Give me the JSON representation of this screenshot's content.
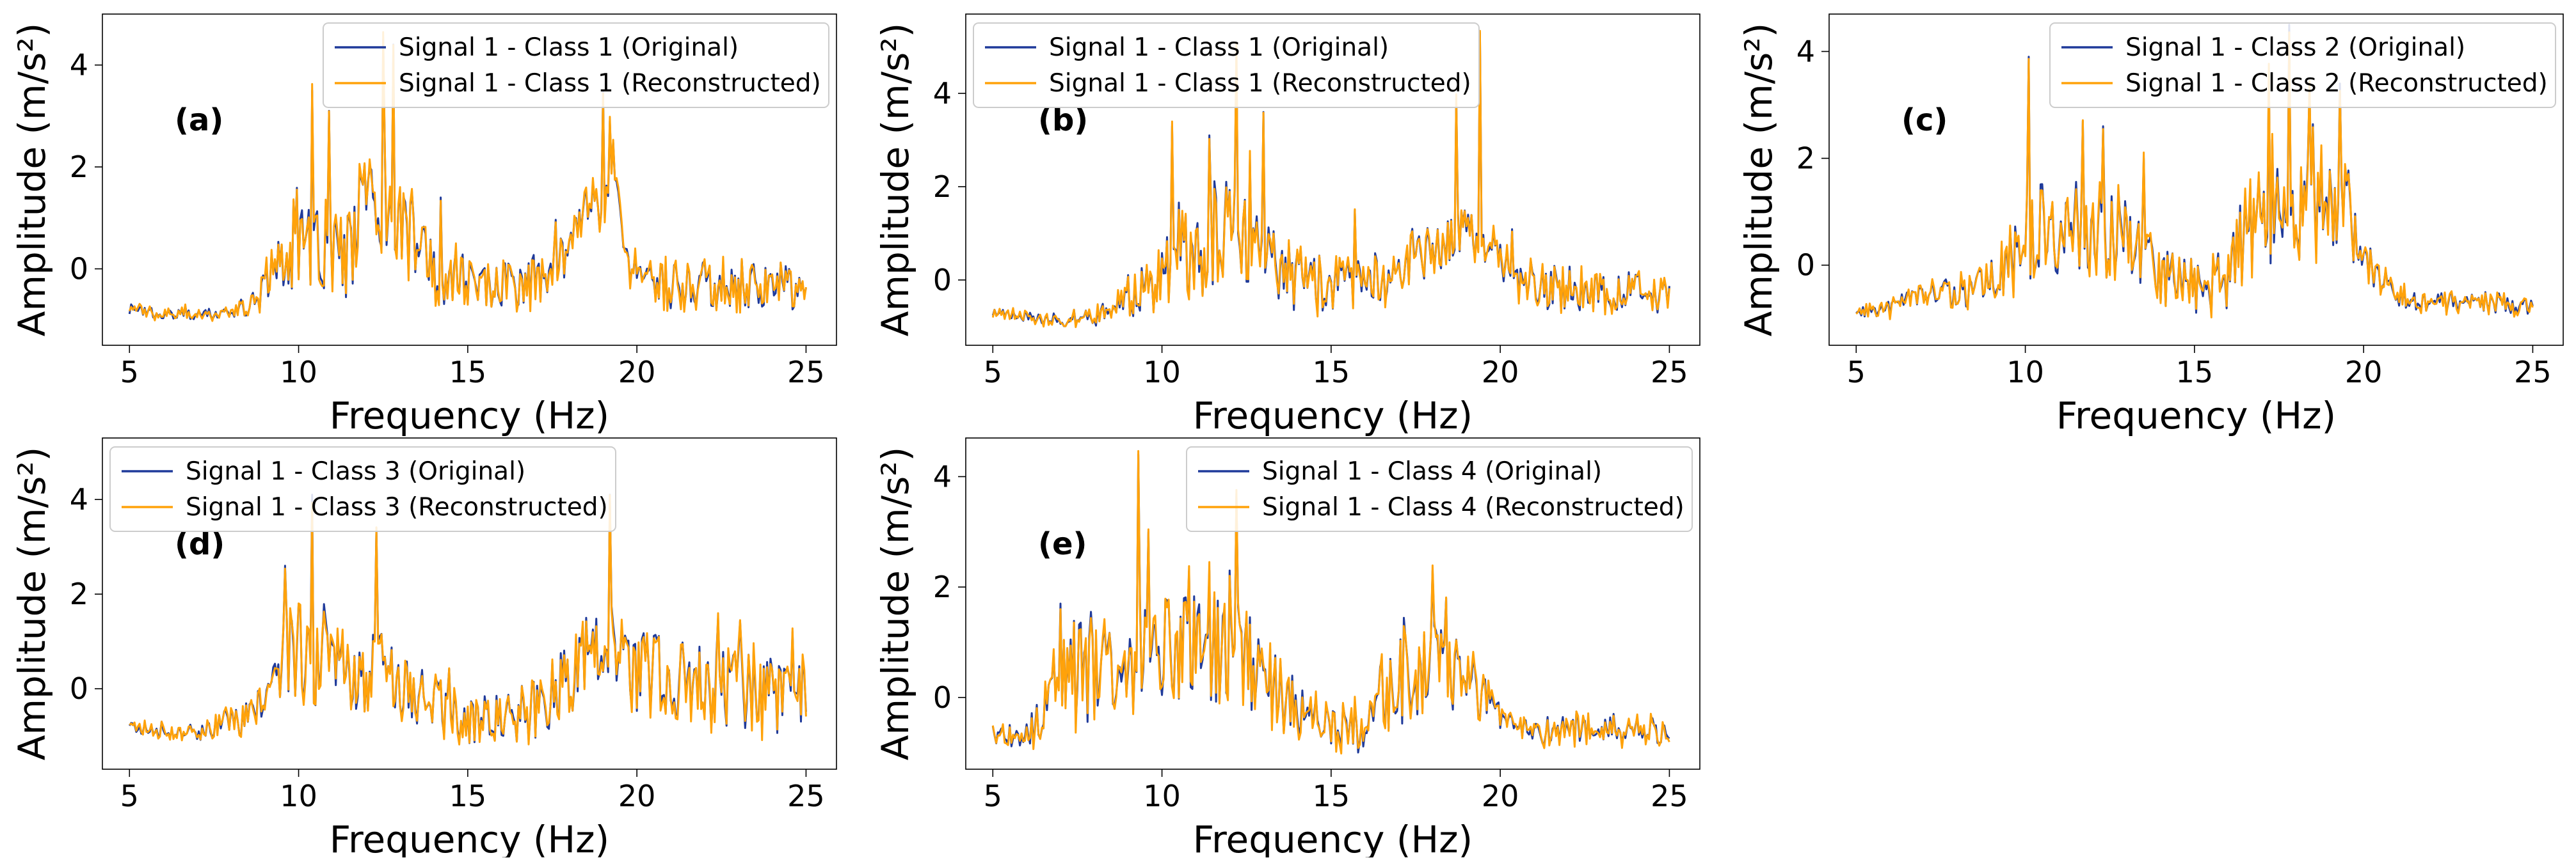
{
  "figure": {
    "colors": {
      "original": "#1f3a9a",
      "reconstructed": "#ffa20a",
      "axis": "#000000",
      "legend_border": "#cccccc"
    }
  },
  "chart_data": [
    {
      "type": "line",
      "panel_label": "(a)",
      "xlabel": "Frequency (Hz)",
      "ylabel": "Amplitude (m/s²)",
      "xlim": [
        4.2,
        25.9
      ],
      "ylim": [
        -1.5,
        5.0
      ],
      "xticks": [
        5,
        10,
        15,
        20,
        25
      ],
      "yticks": [
        0,
        2,
        4
      ],
      "grid": false,
      "legend_position": "upper right",
      "x_range": [
        5,
        25
      ],
      "series": [
        {
          "name": "Signal 1 - Class 1 (Original)",
          "role": "original"
        },
        {
          "name": "Signal 1 - Class 1 (Reconstructed)",
          "role": "reconstructed"
        }
      ],
      "profile": {
        "x": [
          5,
          6,
          7,
          8,
          8.8,
          9.4,
          9.8,
          10.0,
          10.5,
          11.0,
          11.5,
          12.0,
          12.4,
          12.7,
          13.0,
          13.5,
          14,
          15,
          16,
          17,
          18,
          18.5,
          19.0,
          19.3,
          19.6,
          20,
          21,
          22,
          23,
          24,
          25
        ],
        "y": [
          -0.8,
          -0.9,
          -0.9,
          -0.85,
          -0.6,
          0.2,
          0.5,
          0.6,
          0.3,
          0.4,
          0.3,
          1.5,
          1.4,
          1.2,
          1.2,
          0.3,
          -0.1,
          -0.2,
          -0.3,
          -0.2,
          0.3,
          1.3,
          1.0,
          2.4,
          0.2,
          -0.2,
          -0.4,
          -0.3,
          -0.3,
          -0.3,
          -0.5
        ],
        "jitter": [
          0.1,
          0.1,
          0.1,
          0.12,
          0.3,
          0.7,
          0.9,
          1.0,
          1.0,
          0.9,
          0.9,
          1.0,
          1.0,
          1.0,
          0.9,
          0.8,
          0.6,
          0.5,
          0.5,
          0.5,
          0.4,
          0.3,
          0.3,
          0.3,
          0.4,
          0.5,
          0.5,
          0.5,
          0.5,
          0.5,
          0.4
        ],
        "spikes": [
          [
            10.4,
            3.5
          ],
          [
            10.9,
            3.1
          ],
          [
            12.1,
            2.0
          ],
          [
            12.5,
            4.5
          ],
          [
            12.8,
            4.4
          ],
          [
            14.2,
            1.4
          ],
          [
            19.0,
            3.5
          ],
          [
            19.2,
            2.9
          ]
        ]
      }
    },
    {
      "type": "line",
      "panel_label": "(b)",
      "xlabel": "Frequency (Hz)",
      "ylabel": "Amplitude (m/s²)",
      "xlim": [
        4.2,
        25.9
      ],
      "ylim": [
        -1.4,
        5.7
      ],
      "xticks": [
        5,
        10,
        15,
        20,
        25
      ],
      "yticks": [
        0,
        2,
        4
      ],
      "grid": false,
      "legend_position": "upper left",
      "x_range": [
        5,
        25
      ],
      "series": [
        {
          "name": "Signal 1 - Class 1 (Original)",
          "role": "original"
        },
        {
          "name": "Signal 1 - Class 1 (Reconstructed)",
          "role": "reconstructed"
        }
      ],
      "profile": {
        "x": [
          5,
          6,
          7,
          8,
          9,
          9.5,
          10,
          10.5,
          11,
          11.5,
          12,
          12.5,
          13,
          13.5,
          14,
          15,
          16,
          17,
          18,
          18.5,
          19,
          19.5,
          20,
          21,
          22,
          23,
          24,
          25
        ],
        "y": [
          -0.7,
          -0.8,
          -0.9,
          -0.8,
          -0.5,
          -0.2,
          0.3,
          0.8,
          0.6,
          0.7,
          1.3,
          0.8,
          0.9,
          0.3,
          0.0,
          -0.1,
          0.0,
          0.2,
          0.6,
          0.9,
          1.2,
          0.7,
          0.3,
          -0.1,
          -0.2,
          -0.2,
          -0.3,
          -0.3
        ],
        "jitter": [
          0.1,
          0.1,
          0.1,
          0.2,
          0.4,
          0.6,
          0.9,
          1.0,
          1.0,
          1.0,
          1.0,
          1.0,
          0.9,
          0.8,
          0.7,
          0.6,
          0.6,
          0.6,
          0.6,
          0.5,
          0.5,
          0.5,
          0.5,
          0.5,
          0.5,
          0.5,
          0.5,
          0.4
        ],
        "spikes": [
          [
            10.3,
            3.3
          ],
          [
            11.4,
            3.1
          ],
          [
            12.2,
            4.9
          ],
          [
            12.6,
            2.6
          ],
          [
            13.0,
            3.6
          ],
          [
            15.7,
            1.5
          ],
          [
            18.7,
            3.9
          ],
          [
            19.4,
            5.3
          ]
        ]
      }
    },
    {
      "type": "line",
      "panel_label": "(c)",
      "xlabel": "Frequency (Hz)",
      "ylabel": "Amplitude (m/s²)",
      "xlim": [
        4.2,
        25.9
      ],
      "ylim": [
        -1.5,
        4.7
      ],
      "xticks": [
        5,
        10,
        15,
        20,
        25
      ],
      "yticks": [
        0,
        2,
        4
      ],
      "grid": false,
      "legend_position": "upper right",
      "x_range": [
        5,
        25
      ],
      "series": [
        {
          "name": "Signal 1 - Class 2 (Original)",
          "role": "original"
        },
        {
          "name": "Signal 1 - Class 2 (Reconstructed)",
          "role": "reconstructed"
        }
      ],
      "profile": {
        "x": [
          5,
          6,
          7,
          8,
          9,
          9.5,
          10,
          10.5,
          11,
          11.5,
          12,
          12.5,
          13,
          13.5,
          14,
          15,
          16,
          16.5,
          17,
          17.5,
          18,
          18.5,
          19,
          19.5,
          20,
          21,
          22,
          23,
          24,
          25
        ],
        "y": [
          -0.9,
          -0.8,
          -0.5,
          -0.5,
          -0.3,
          0.0,
          0.5,
          0.7,
          0.6,
          0.8,
          0.8,
          0.6,
          0.5,
          0.3,
          -0.2,
          -0.4,
          -0.3,
          0.6,
          1.0,
          0.9,
          1.0,
          1.1,
          1.2,
          1.1,
          0.1,
          -0.6,
          -0.7,
          -0.7,
          -0.7,
          -0.8
        ],
        "jitter": [
          0.1,
          0.15,
          0.2,
          0.3,
          0.4,
          0.6,
          0.9,
          0.9,
          0.8,
          0.9,
          0.9,
          0.9,
          0.8,
          0.7,
          0.6,
          0.5,
          0.6,
          0.9,
          1.0,
          1.0,
          1.0,
          1.0,
          1.0,
          0.9,
          0.4,
          0.2,
          0.2,
          0.2,
          0.2,
          0.15
        ],
        "spikes": [
          [
            10.1,
            3.9
          ],
          [
            11.7,
            2.7
          ],
          [
            12.3,
            2.6
          ],
          [
            13.5,
            2.0
          ],
          [
            17.2,
            3.6
          ],
          [
            17.8,
            4.5
          ],
          [
            18.4,
            3.3
          ],
          [
            19.3,
            3.4
          ]
        ]
      }
    },
    {
      "type": "line",
      "panel_label": "(d)",
      "xlabel": "Frequency (Hz)",
      "ylabel": "Amplitude (m/s²)",
      "xlim": [
        4.2,
        25.9
      ],
      "ylim": [
        -1.7,
        5.3
      ],
      "xticks": [
        5,
        10,
        15,
        20,
        25
      ],
      "yticks": [
        0,
        2,
        4
      ],
      "grid": false,
      "legend_position": "upper left",
      "x_range": [
        5,
        25
      ],
      "series": [
        {
          "name": "Signal 1 - Class 3 (Original)",
          "role": "original"
        },
        {
          "name": "Signal 1 - Class 3 (Reconstructed)",
          "role": "reconstructed"
        }
      ],
      "profile": {
        "x": [
          5,
          6,
          7,
          8,
          9,
          9.5,
          10,
          10.5,
          11,
          11.5,
          12,
          12.5,
          13,
          14,
          15,
          16,
          17,
          18,
          18.5,
          19,
          19.5,
          20,
          21,
          22,
          23,
          24,
          25
        ],
        "y": [
          -0.8,
          -0.9,
          -0.9,
          -0.7,
          -0.4,
          0.5,
          0.8,
          0.6,
          0.5,
          0.3,
          0.2,
          0.4,
          0.0,
          -0.3,
          -0.7,
          -0.6,
          -0.4,
          0.2,
          0.6,
          1.2,
          0.8,
          0.3,
          0.2,
          0.0,
          0.0,
          -0.1,
          -0.1
        ],
        "jitter": [
          0.1,
          0.15,
          0.2,
          0.3,
          0.5,
          0.9,
          1.0,
          1.0,
          0.9,
          0.8,
          0.8,
          0.8,
          0.7,
          0.6,
          0.5,
          0.6,
          0.7,
          0.8,
          0.9,
          0.9,
          0.9,
          0.9,
          0.9,
          0.9,
          0.9,
          0.9,
          0.8
        ],
        "spikes": [
          [
            9.6,
            2.6
          ],
          [
            10.4,
            4.1
          ],
          [
            12.3,
            3.4
          ],
          [
            18.5,
            1.5
          ],
          [
            19.2,
            4.1
          ],
          [
            22.4,
            1.5
          ],
          [
            24.6,
            1.2
          ]
        ]
      }
    },
    {
      "type": "line",
      "panel_label": "(e)",
      "xlabel": "Frequency (Hz)",
      "ylabel": "Amplitude (m/s²)",
      "xlim": [
        4.2,
        25.9
      ],
      "ylim": [
        -1.3,
        4.7
      ],
      "xticks": [
        5,
        10,
        15,
        20,
        25
      ],
      "yticks": [
        0,
        2,
        4
      ],
      "grid": false,
      "legend_position": "upper right",
      "x_range": [
        5,
        25
      ],
      "series": [
        {
          "name": "Signal 1 - Class 4 (Original)",
          "role": "original"
        },
        {
          "name": "Signal 1 - Class 4 (Reconstructed)",
          "role": "reconstructed"
        }
      ],
      "profile": {
        "x": [
          5,
          6,
          6.5,
          7,
          7.5,
          8,
          8.5,
          9,
          9.5,
          10,
          10.5,
          11,
          11.5,
          12,
          12.5,
          13,
          14,
          15,
          16,
          16.5,
          17,
          17.5,
          18,
          18.5,
          19,
          19.5,
          20,
          21,
          22,
          23,
          24,
          25
        ],
        "y": [
          -0.7,
          -0.7,
          -0.3,
          0.5,
          0.4,
          0.6,
          0.5,
          0.5,
          1.0,
          0.8,
          0.8,
          0.9,
          0.9,
          1.0,
          0.8,
          0.3,
          -0.3,
          -0.6,
          -0.5,
          0.0,
          0.3,
          0.4,
          0.7,
          0.5,
          0.4,
          0.0,
          -0.5,
          -0.6,
          -0.6,
          -0.6,
          -0.6,
          -0.6
        ],
        "jitter": [
          0.15,
          0.3,
          0.6,
          0.9,
          1.0,
          1.0,
          1.0,
          1.0,
          1.0,
          1.0,
          1.0,
          1.0,
          1.0,
          1.0,
          1.0,
          0.8,
          0.6,
          0.4,
          0.5,
          0.7,
          0.8,
          0.8,
          0.8,
          0.8,
          0.7,
          0.6,
          0.3,
          0.25,
          0.25,
          0.25,
          0.25,
          0.25
        ],
        "spikes": [
          [
            7.0,
            1.7
          ],
          [
            9.3,
            4.4
          ],
          [
            9.6,
            3.0
          ],
          [
            10.8,
            2.3
          ],
          [
            11.4,
            2.3
          ],
          [
            12.0,
            2.3
          ],
          [
            12.2,
            3.7
          ],
          [
            18.0,
            2.3
          ],
          [
            18.4,
            1.8
          ]
        ]
      }
    }
  ]
}
